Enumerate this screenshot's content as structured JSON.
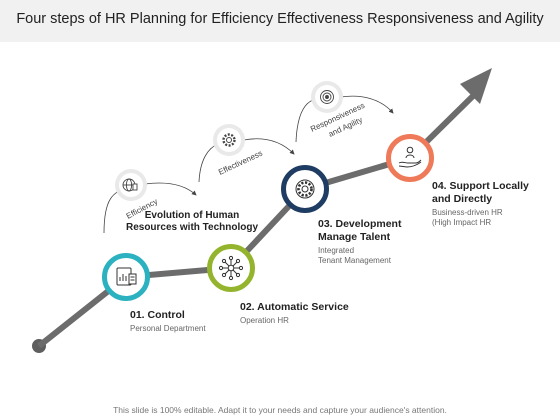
{
  "title": "Four steps of HR Planning for Efficiency Effectiveness Responsiveness and Agility",
  "footer": "This slide is 100% editable. Adapt it to your needs and capture your audience's attention.",
  "center_label": [
    "Evolution of Human",
    "Resources with Technology"
  ],
  "steps": [
    {
      "title": [
        "01. Control"
      ],
      "sub": [
        "Personal Department"
      ],
      "color": "#2bb1c0",
      "icon": "document-analytics-icon"
    },
    {
      "title": [
        "02. Automatic Service"
      ],
      "sub": [
        "Operation HR"
      ],
      "color": "#94b42e",
      "icon": "network-hub-icon"
    },
    {
      "title": [
        "03. Development",
        "Manage Talent"
      ],
      "sub": [
        "Integrated",
        "Tenant Management"
      ],
      "color": "#1f3d63",
      "icon": "gear-icon"
    },
    {
      "title": [
        "04. Support Locally",
        "and Directly"
      ],
      "sub": [
        "Business-driven HR",
        "(High Impact HR"
      ],
      "color": "#ee7a59",
      "icon": "hand-person-icon"
    }
  ],
  "arcs": [
    {
      "label": "Efficiency",
      "icon": "globe-icon"
    },
    {
      "label": "Effectiveness",
      "icon": "settings-icon"
    },
    {
      "label": "Responsiveness and Agility",
      "label_lines": [
        "Responsiveness",
        "and Agility"
      ],
      "icon": "target-icon"
    }
  ],
  "colors": {
    "path_line": "#6c6c6c",
    "arc_line": "#444444",
    "title_bar": "#f1f1f1"
  }
}
